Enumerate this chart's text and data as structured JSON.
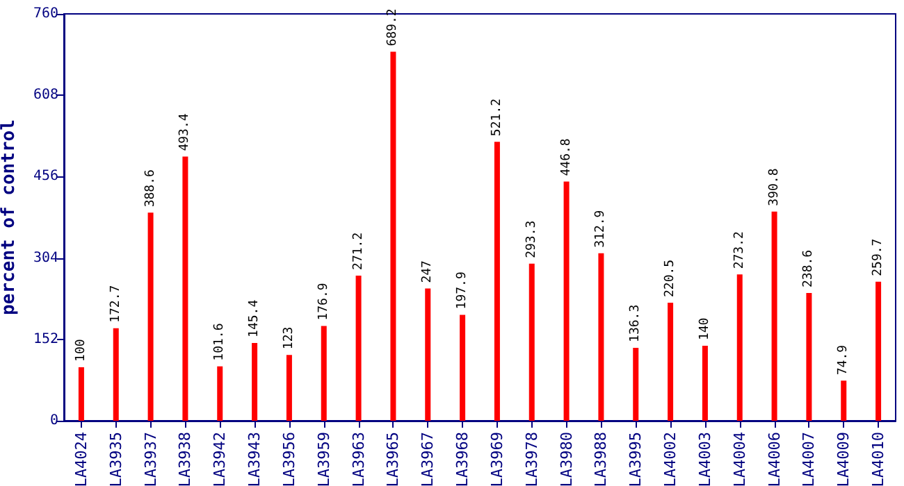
{
  "chart_data": {
    "type": "bar",
    "ylabel": "percent of control",
    "categories": [
      "LA4024",
      "LA3935",
      "LA3937",
      "LA3938",
      "LA3942",
      "LA3943",
      "LA3956",
      "LA3959",
      "LA3963",
      "LA3965",
      "LA3967",
      "LA3968",
      "LA3969",
      "LA3978",
      "LA3980",
      "LA3988",
      "LA3995",
      "LA4002",
      "LA4003",
      "LA4004",
      "LA4006",
      "LA4007",
      "LA4009",
      "LA4010"
    ],
    "values": [
      100,
      172.7,
      388.6,
      493.4,
      101.6,
      145.4,
      123,
      176.9,
      271.2,
      689.2,
      247,
      197.9,
      521.2,
      293.3,
      446.8,
      312.9,
      136.3,
      220.5,
      140,
      273.2,
      390.8,
      238.6,
      74.9,
      259.7
    ],
    "color": "#ff0000",
    "ylim": [
      0,
      760
    ],
    "yticks": [
      0,
      152,
      304,
      456,
      608,
      760
    ],
    "data_labels": true,
    "grid": false
  }
}
